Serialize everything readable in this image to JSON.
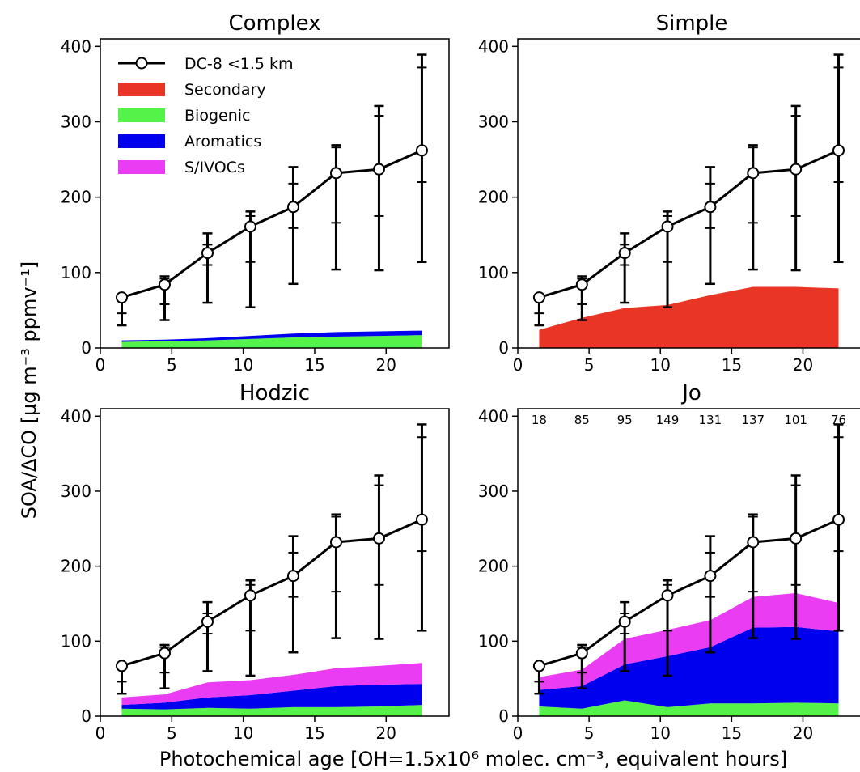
{
  "figure": {
    "ylabel": "SOA/ΔCO [μg m⁻³ ppmv⁻¹]",
    "xlabel": "Photochemical age [OH=1.5x10⁶ molec. cm⁻³, equivalent hours]"
  },
  "chart_data": [
    {
      "type": "area",
      "title": "Complex",
      "xlim": [
        0,
        24.4
      ],
      "ylim": [
        0,
        410
      ],
      "xticks": [
        0,
        5,
        10,
        15,
        20
      ],
      "yticks": [
        0,
        100,
        200,
        300,
        400
      ],
      "x": [
        1.5,
        4.5,
        7.5,
        10.5,
        13.5,
        16.5,
        19.5,
        22.5
      ],
      "observations": {
        "name": "DC-8 <1.5 km",
        "y": [
          67,
          84,
          126,
          161,
          187,
          232,
          237,
          262
        ],
        "err_outer_low": [
          30,
          37,
          60,
          54,
          85,
          104,
          103,
          114
        ],
        "err_outer_high": [
          67,
          95,
          152,
          181,
          240,
          269,
          321,
          389
        ],
        "err_inner_low": [
          46,
          58,
          110,
          114,
          159,
          166,
          175,
          220
        ],
        "err_inner_high": [
          67,
          92,
          137,
          175,
          218,
          266,
          308,
          372
        ]
      },
      "series": [
        {
          "name": "Biogenic",
          "color": "#55f24a",
          "values": [
            8,
            9,
            10,
            12,
            14,
            15,
            16,
            17
          ]
        },
        {
          "name": "Aromatics",
          "color": "#0000ee",
          "values": [
            2,
            2,
            3,
            4,
            5,
            6,
            6,
            6
          ]
        }
      ],
      "legend": {
        "placement": "top-left",
        "entries": [
          {
            "label": "DC-8 <1.5 km",
            "kind": "line",
            "color": "#000000"
          },
          {
            "label": "Secondary",
            "kind": "patch",
            "color": "#e93525"
          },
          {
            "label": "Biogenic",
            "kind": "patch",
            "color": "#55f24a"
          },
          {
            "label": "Aromatics",
            "kind": "patch",
            "color": "#0000ee"
          },
          {
            "label": "S/IVOCs",
            "kind": "patch",
            "color": "#ea3cf3"
          }
        ]
      }
    },
    {
      "type": "area",
      "title": "Simple",
      "xlim": [
        0,
        24.4
      ],
      "ylim": [
        0,
        410
      ],
      "xticks": [
        0,
        5,
        10,
        15,
        20
      ],
      "yticks": [
        0,
        100,
        200,
        300,
        400
      ],
      "x": [
        1.5,
        4.5,
        7.5,
        10.5,
        13.5,
        16.5,
        19.5,
        22.5
      ],
      "observations": {
        "name": "DC-8 <1.5 km",
        "y": [
          67,
          84,
          126,
          161,
          187,
          232,
          237,
          262
        ],
        "err_outer_low": [
          30,
          37,
          60,
          54,
          85,
          104,
          103,
          114
        ],
        "err_outer_high": [
          67,
          95,
          152,
          181,
          240,
          269,
          321,
          389
        ],
        "err_inner_low": [
          46,
          58,
          110,
          114,
          159,
          166,
          175,
          220
        ],
        "err_inner_high": [
          67,
          92,
          137,
          175,
          218,
          266,
          308,
          372
        ]
      },
      "series": [
        {
          "name": "Secondary",
          "color": "#e93525",
          "values": [
            24,
            40,
            53,
            57,
            70,
            81,
            81,
            79
          ]
        }
      ]
    },
    {
      "type": "area",
      "title": "Hodzic",
      "xlim": [
        0,
        24.4
      ],
      "ylim": [
        0,
        410
      ],
      "xticks": [
        0,
        5,
        10,
        15,
        20
      ],
      "yticks": [
        0,
        100,
        200,
        300,
        400
      ],
      "x": [
        1.5,
        4.5,
        7.5,
        10.5,
        13.5,
        16.5,
        19.5,
        22.5
      ],
      "observations": {
        "name": "DC-8 <1.5 km",
        "y": [
          67,
          84,
          126,
          161,
          187,
          232,
          237,
          262
        ],
        "err_outer_low": [
          30,
          37,
          60,
          54,
          85,
          104,
          103,
          114
        ],
        "err_outer_high": [
          67,
          95,
          152,
          181,
          240,
          269,
          321,
          389
        ],
        "err_inner_low": [
          46,
          58,
          110,
          114,
          159,
          166,
          175,
          220
        ],
        "err_inner_high": [
          67,
          92,
          137,
          175,
          218,
          266,
          308,
          372
        ]
      },
      "series": [
        {
          "name": "Biogenic",
          "color": "#55f24a",
          "values": [
            10,
            9,
            11,
            10,
            12,
            12,
            13,
            15
          ]
        },
        {
          "name": "Aromatics",
          "color": "#0000ee",
          "values": [
            5,
            9,
            14,
            18,
            22,
            28,
            29,
            28
          ]
        },
        {
          "name": "S/IVOCs",
          "color": "#ea3cf3",
          "values": [
            10,
            11,
            20,
            20,
            21,
            24,
            25,
            28
          ]
        }
      ]
    },
    {
      "type": "area",
      "title": "Jo",
      "xlim": [
        0,
        24.4
      ],
      "ylim": [
        0,
        410
      ],
      "xticks": [
        0,
        5,
        10,
        15,
        20
      ],
      "yticks": [
        0,
        100,
        200,
        300,
        400
      ],
      "x": [
        1.5,
        4.5,
        7.5,
        10.5,
        13.5,
        16.5,
        19.5,
        22.5
      ],
      "counts": [
        "18",
        "85",
        "95",
        "149",
        "131",
        "137",
        "101",
        "76"
      ],
      "observations": {
        "name": "DC-8 <1.5 km",
        "y": [
          67,
          84,
          126,
          161,
          187,
          232,
          237,
          262
        ],
        "err_outer_low": [
          30,
          37,
          60,
          54,
          85,
          104,
          103,
          114
        ],
        "err_outer_high": [
          67,
          95,
          152,
          181,
          240,
          269,
          321,
          389
        ],
        "err_inner_low": [
          46,
          58,
          110,
          114,
          159,
          166,
          175,
          220
        ],
        "err_inner_high": [
          67,
          92,
          137,
          175,
          218,
          266,
          308,
          372
        ]
      },
      "series": [
        {
          "name": "Biogenic",
          "color": "#55f24a",
          "values": [
            13,
            10,
            21,
            12,
            17,
            17,
            18,
            17
          ]
        },
        {
          "name": "Aromatics",
          "color": "#0000ee",
          "values": [
            22,
            30,
            48,
            68,
            75,
            101,
            101,
            96
          ]
        },
        {
          "name": "S/IVOCs",
          "color": "#ea3cf3",
          "values": [
            17,
            22,
            34,
            35,
            36,
            41,
            45,
            38
          ]
        }
      ]
    }
  ]
}
